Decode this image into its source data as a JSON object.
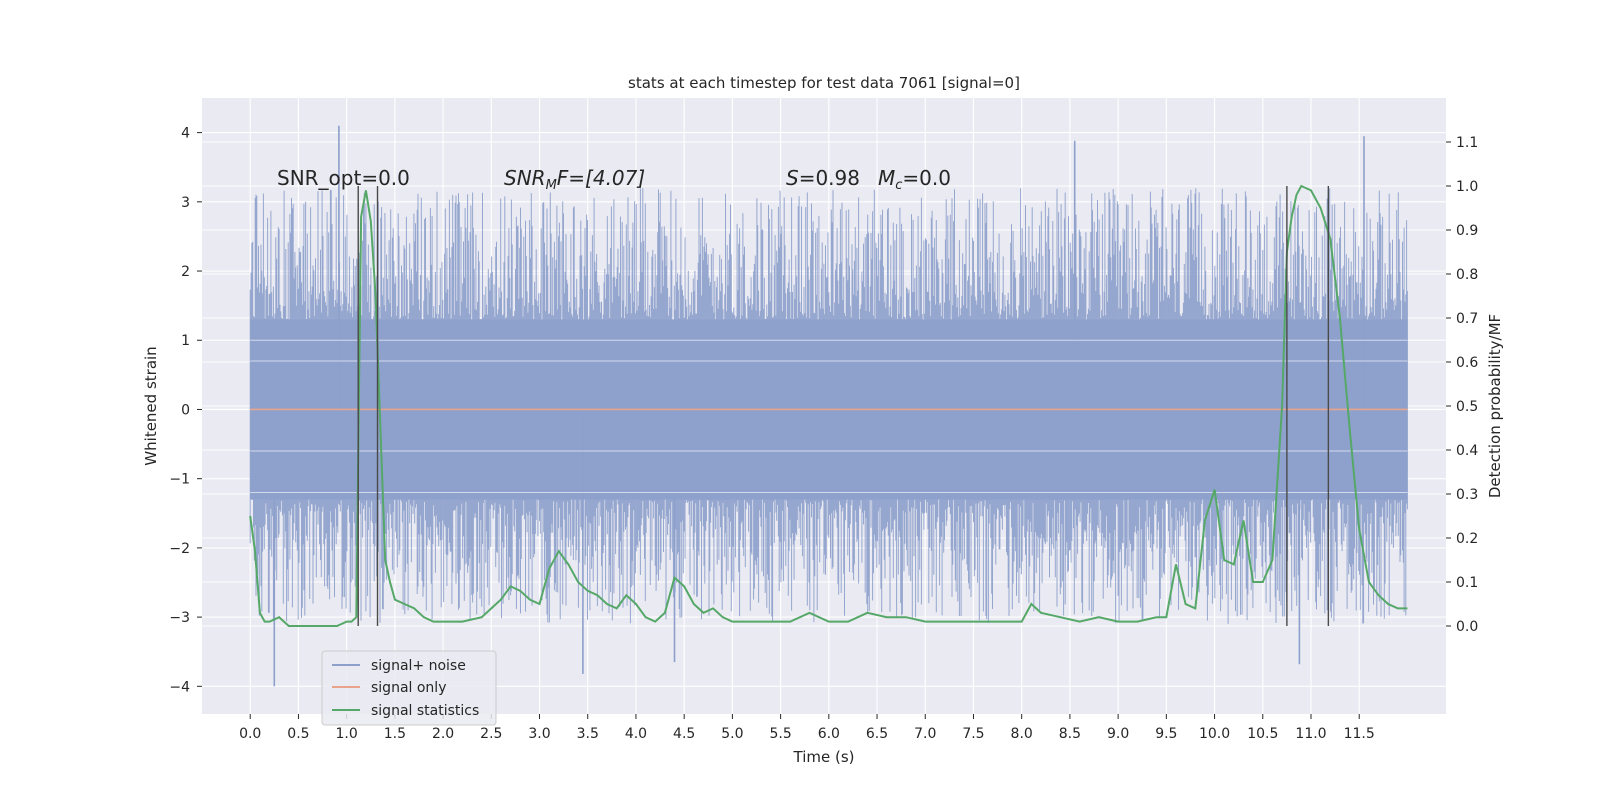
{
  "chart_data": {
    "type": "line",
    "title": "stats at each timestep for test data 7061 [signal=0]",
    "xlabel": "Time (s)",
    "ylabel_left": "Whitened strain",
    "ylabel_right": "Detection probability/MF",
    "xlim": [
      -0.5,
      12.4
    ],
    "ylim_left": [
      -4.4,
      4.5
    ],
    "ylim_right": [
      -0.2,
      1.2
    ],
    "x_ticks": [
      "0.0",
      "0.5",
      "1.0",
      "1.5",
      "2.0",
      "2.5",
      "3.0",
      "3.5",
      "4.0",
      "4.5",
      "5.0",
      "5.5",
      "6.0",
      "6.5",
      "7.0",
      "7.5",
      "8.0",
      "8.5",
      "9.0",
      "9.5",
      "10.0",
      "10.5",
      "11.0",
      "11.5"
    ],
    "y_ticks_left": [
      "4",
      "3",
      "2",
      "1",
      "0",
      "−1",
      "−2",
      "−3",
      "−4"
    ],
    "y_ticks_right": [
      "1.1",
      "1.0",
      "0.9",
      "0.8",
      "0.7",
      "0.6",
      "0.5",
      "0.4",
      "0.3",
      "0.2",
      "0.1",
      "0.0"
    ],
    "grid": true,
    "legend_position": "lower-left",
    "colors": {
      "background": "#eaeaf2",
      "noise": "#8da0cb",
      "signal_only": "#e8a48a",
      "statistics": "#55a868",
      "markers": "#4a4a4a"
    },
    "annotations": {
      "snr_opt": "SNR_opt=0.0",
      "snr_mf_label": "SNR",
      "snr_mf_sub": "M",
      "snr_mf_rest": "F=[4.07]",
      "s_label": "S",
      "s_value": "=0.98",
      "mc_label": "M",
      "mc_sub": "c",
      "mc_value": "=0.0"
    },
    "marker_lines_x": [
      1.12,
      1.32,
      10.75,
      11.18
    ],
    "noise_envelope": {
      "t_start": 0.0,
      "t_end": 12.0,
      "dense_band": [
        -1.3,
        1.3
      ],
      "peak_max": 4.1,
      "peak_min": -4.0,
      "notable_peaks": [
        {
          "x": 0.92,
          "y": 4.1
        },
        {
          "x": 0.25,
          "y": -4.0
        },
        {
          "x": 11.55,
          "y": 3.95
        },
        {
          "x": 8.55,
          "y": 3.88
        },
        {
          "x": 3.45,
          "y": -3.82
        },
        {
          "x": 10.88,
          "y": -3.68
        },
        {
          "x": 4.4,
          "y": -3.65
        }
      ]
    },
    "series": [
      {
        "name": "signal+ noise",
        "axis": "left"
      },
      {
        "name": "signal only",
        "axis": "left",
        "x": [
          0.0,
          12.0
        ],
        "y": [
          0.0,
          0.0
        ]
      },
      {
        "name": "signal statistics",
        "axis": "right",
        "x": [
          0.0,
          0.05,
          0.1,
          0.15,
          0.2,
          0.3,
          0.4,
          0.5,
          0.6,
          0.7,
          0.8,
          0.9,
          1.0,
          1.05,
          1.1,
          1.15,
          1.2,
          1.25,
          1.3,
          1.35,
          1.4,
          1.45,
          1.5,
          1.6,
          1.7,
          1.8,
          1.9,
          2.0,
          2.2,
          2.4,
          2.5,
          2.6,
          2.7,
          2.8,
          2.9,
          3.0,
          3.1,
          3.2,
          3.3,
          3.4,
          3.5,
          3.6,
          3.7,
          3.8,
          3.9,
          4.0,
          4.1,
          4.2,
          4.3,
          4.4,
          4.5,
          4.6,
          4.7,
          4.8,
          4.9,
          5.0,
          5.2,
          5.4,
          5.6,
          5.8,
          6.0,
          6.2,
          6.4,
          6.6,
          6.8,
          7.0,
          7.2,
          7.4,
          7.6,
          7.8,
          8.0,
          8.1,
          8.2,
          8.4,
          8.6,
          8.8,
          9.0,
          9.2,
          9.4,
          9.5,
          9.6,
          9.7,
          9.8,
          9.9,
          10.0,
          10.1,
          10.2,
          10.3,
          10.4,
          10.5,
          10.6,
          10.7,
          10.75,
          10.8,
          10.85,
          10.9,
          11.0,
          11.1,
          11.2,
          11.3,
          11.4,
          11.5,
          11.6,
          11.7,
          11.8,
          11.9,
          12.0
        ],
        "y": [
          0.25,
          0.17,
          0.03,
          0.01,
          0.01,
          0.02,
          0.0,
          0.0,
          0.0,
          0.0,
          0.0,
          0.0,
          0.01,
          0.01,
          0.02,
          0.93,
          0.99,
          0.92,
          0.75,
          0.45,
          0.15,
          0.1,
          0.06,
          0.05,
          0.04,
          0.02,
          0.01,
          0.01,
          0.01,
          0.02,
          0.04,
          0.06,
          0.09,
          0.08,
          0.06,
          0.05,
          0.13,
          0.17,
          0.14,
          0.1,
          0.08,
          0.07,
          0.05,
          0.04,
          0.07,
          0.05,
          0.02,
          0.01,
          0.03,
          0.11,
          0.09,
          0.05,
          0.03,
          0.04,
          0.02,
          0.01,
          0.01,
          0.01,
          0.01,
          0.03,
          0.01,
          0.01,
          0.03,
          0.02,
          0.02,
          0.01,
          0.01,
          0.01,
          0.01,
          0.01,
          0.01,
          0.05,
          0.03,
          0.02,
          0.01,
          0.02,
          0.01,
          0.01,
          0.02,
          0.02,
          0.14,
          0.05,
          0.04,
          0.24,
          0.31,
          0.15,
          0.14,
          0.24,
          0.1,
          0.1,
          0.15,
          0.5,
          0.85,
          0.93,
          0.98,
          1.0,
          0.99,
          0.95,
          0.88,
          0.7,
          0.45,
          0.22,
          0.1,
          0.07,
          0.05,
          0.04,
          0.04
        ]
      }
    ],
    "legend": {
      "noise_label": "signal+ noise",
      "signal_label": "signal only",
      "stats_label": "signal statistics"
    }
  }
}
